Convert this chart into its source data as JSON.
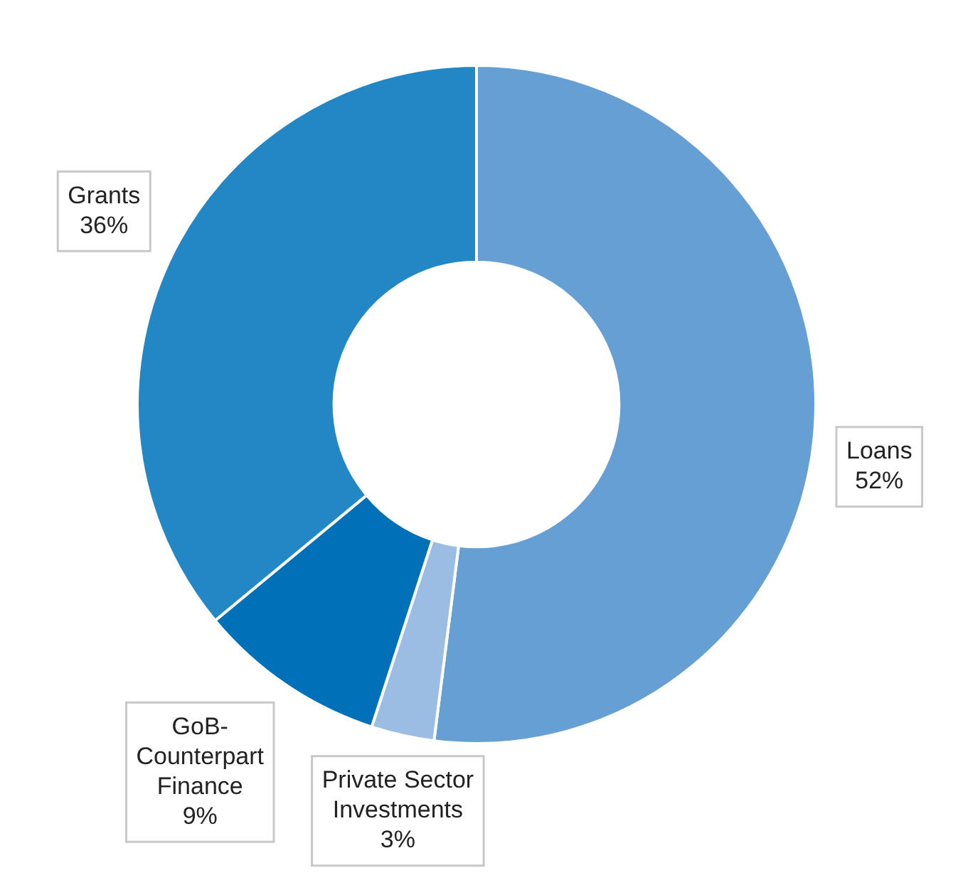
{
  "chart_data": {
    "type": "donut",
    "categories": [
      "Loans",
      "Private Sector Investments",
      "GoB-Counterpart Finance",
      "Grants"
    ],
    "values": [
      52,
      3,
      9,
      36
    ],
    "value_labels": [
      "52%",
      "3%",
      "9%",
      "36%"
    ],
    "colors": [
      "#669fd3",
      "#9bbce3",
      "#0070b8",
      "#2387c6"
    ]
  }
}
